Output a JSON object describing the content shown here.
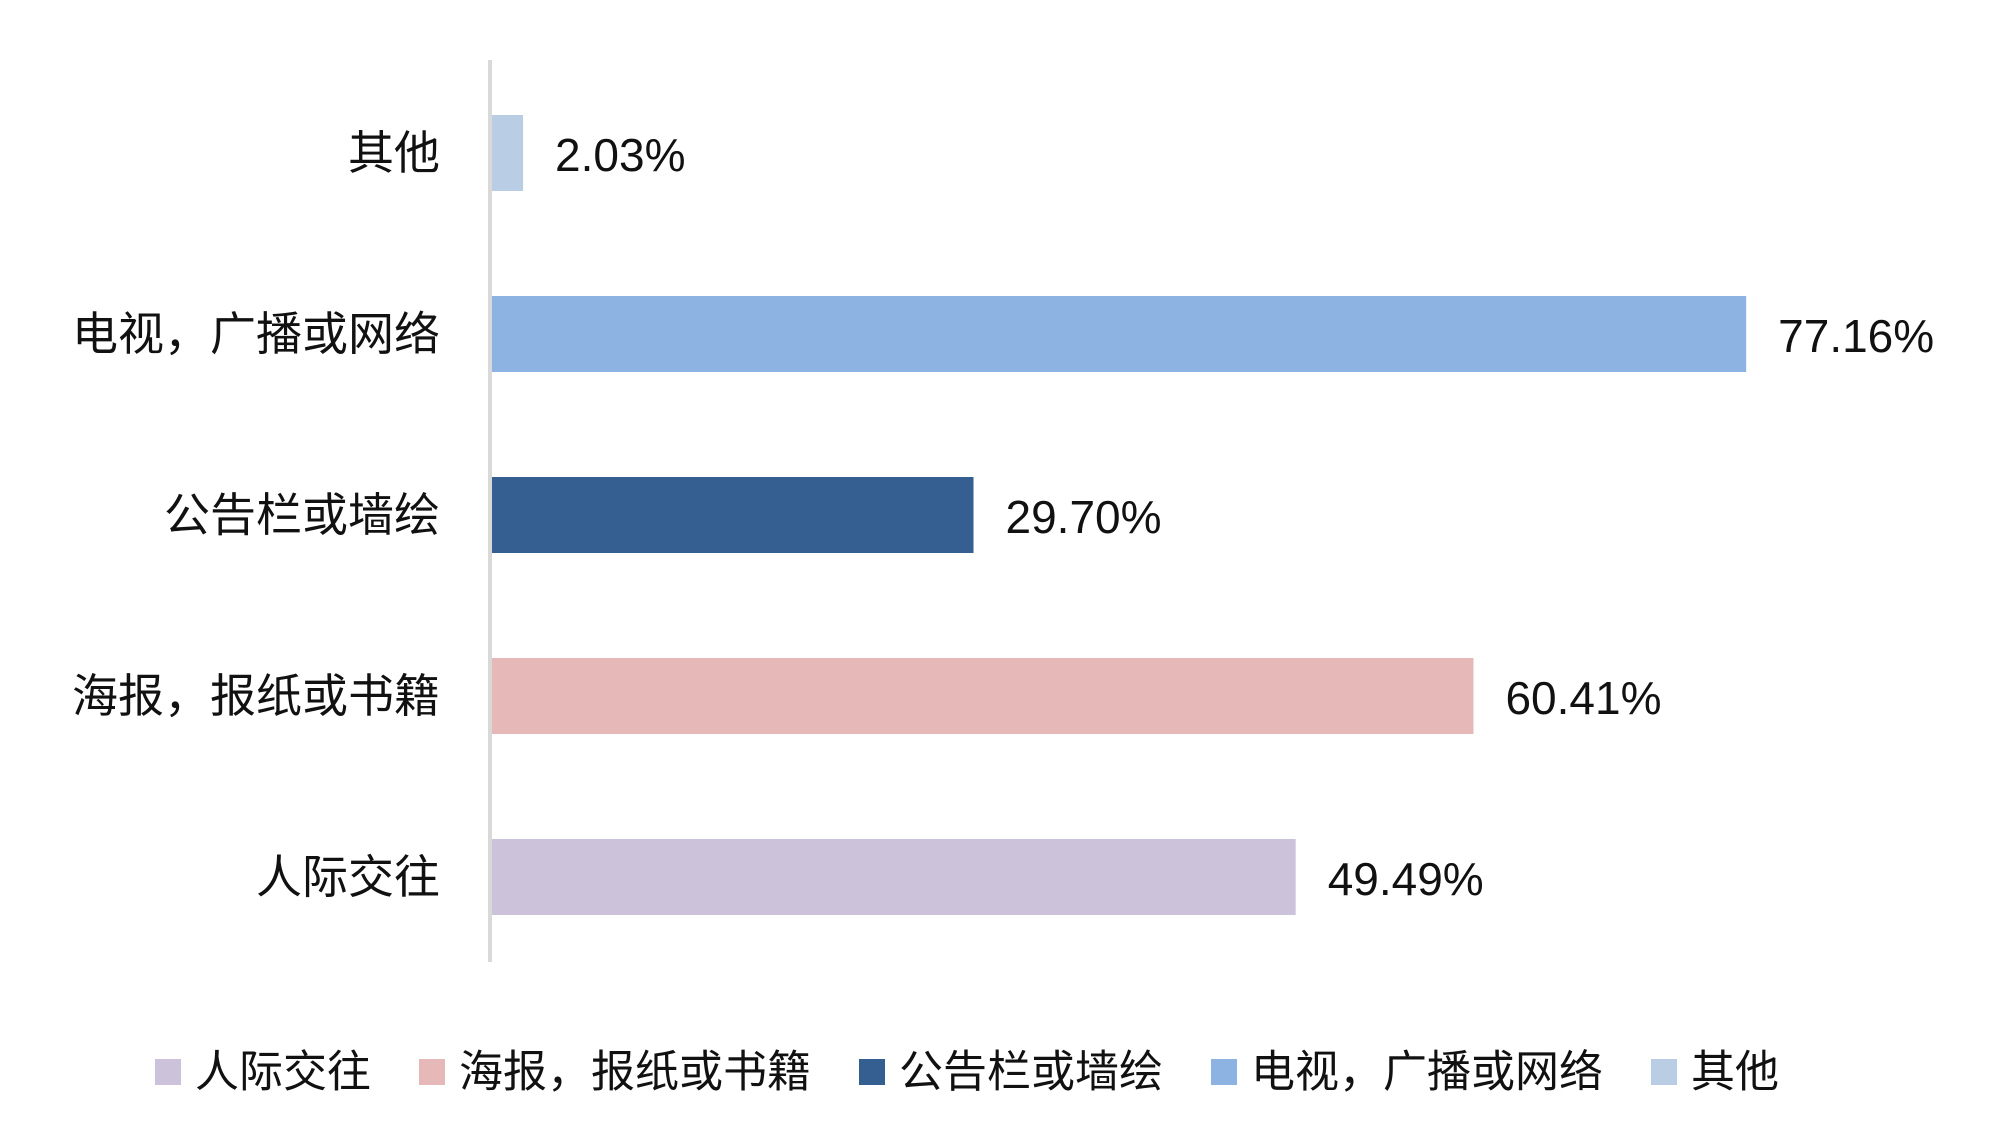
{
  "chart_data": {
    "type": "bar",
    "orientation": "horizontal",
    "categories": [
      "人际交往",
      "海报，报纸或书籍",
      "公告栏或墙绘",
      "电视，广播或网络",
      "其他"
    ],
    "values": [
      49.49,
      60.41,
      29.7,
      77.16,
      2.03
    ],
    "value_labels": [
      "49.49%",
      "60.41%",
      "29.70%",
      "77.16%",
      "2.03%"
    ],
    "colors": [
      "#CCC3DB",
      "#E6B8B8",
      "#365F91",
      "#8DB3E2",
      "#B9CDE5"
    ],
    "xlim": [
      0,
      100
    ],
    "grid": false,
    "title": "",
    "xlabel": "",
    "ylabel": "",
    "legend": {
      "position": "bottom",
      "entries": [
        "人际交往",
        "海报，报纸或书籍",
        "公告栏或墙绘",
        "电视，广播或网络",
        "其他"
      ]
    }
  }
}
